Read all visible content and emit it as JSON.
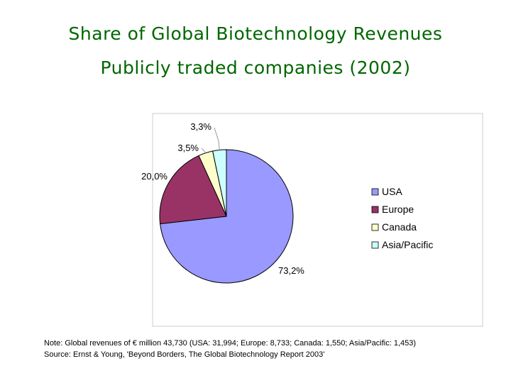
{
  "title": "Share of Global Biotechnology Revenues",
  "subtitle": "Publicly traded companies (2002)",
  "chart_data": {
    "type": "pie",
    "title": "Share of Global Biotechnology Revenues",
    "subtitle": "Publicly traded companies (2002)",
    "unit": "%",
    "start_angle": "12 o'clock",
    "direction": "clockwise",
    "legend_position": "right",
    "slices": [
      {
        "label": "USA",
        "value": 73.2,
        "value_label": "73,2%",
        "color": "#9999ff"
      },
      {
        "label": "Europe",
        "value": 20.0,
        "value_label": "20,0%",
        "color": "#993366"
      },
      {
        "label": "Canada",
        "value": 3.5,
        "value_label": "3,5%",
        "color": "#ffffcc"
      },
      {
        "label": "Asia/Pacific",
        "value": 3.3,
        "value_label": "3,3%",
        "color": "#ccffff"
      }
    ]
  },
  "notes": {
    "line1": "Note: Global revenues of € million 43,730 (USA: 31,994; Europe: 8,733; Canada: 1,550; Asia/Pacific: 1,453)",
    "line2": "Source: Ernst & Young, 'Beyond Borders, The Global Biotechnology Report 2003'"
  }
}
